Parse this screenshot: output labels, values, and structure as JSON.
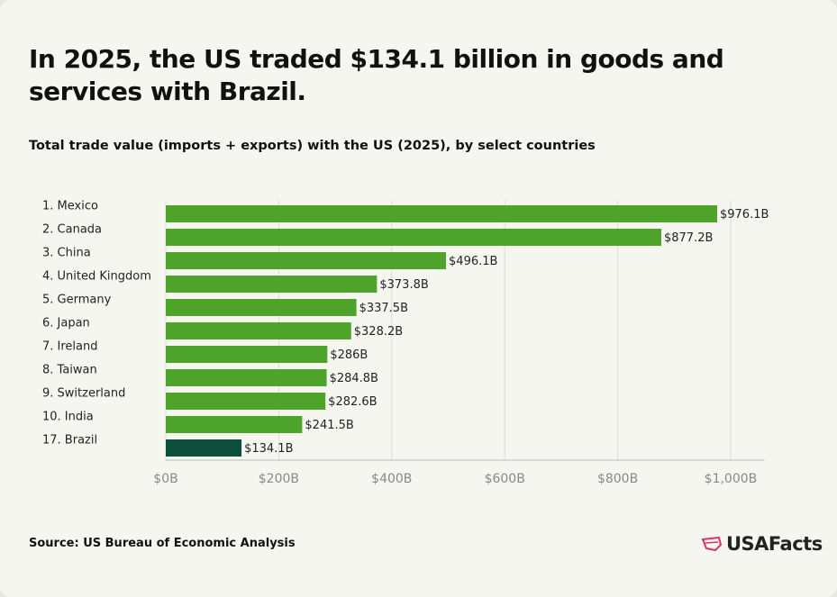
{
  "chart_data": {
    "type": "bar",
    "orientation": "horizontal",
    "title": "In 2025, the US traded $134.1 billion in goods and services with Brazil.",
    "subtitle": "Total trade value (imports + exports) with the US (2025), by select countries",
    "categories": [
      "1. Mexico",
      "2. Canada",
      "3. China",
      "4. United Kingdom",
      "5. Germany",
      "6. Japan",
      "7. Ireland",
      "8. Taiwan",
      "9. Switzerland",
      "10. India",
      "17. Brazil"
    ],
    "values": [
      976.1,
      877.2,
      496.1,
      373.8,
      337.5,
      328.2,
      286,
      284.8,
      282.6,
      241.5,
      134.1
    ],
    "value_labels": [
      "$976.1B",
      "$877.2B",
      "$496.1B",
      "$373.8B",
      "$337.5B",
      "$328.2B",
      "$286B",
      "$284.8B",
      "$282.6B",
      "$241.5B",
      "$134.1B"
    ],
    "colors": [
      "#4ea42a",
      "#4ea42a",
      "#4ea42a",
      "#4ea42a",
      "#4ea42a",
      "#4ea42a",
      "#4ea42a",
      "#4ea42a",
      "#4ea42a",
      "#4ea42a",
      "#0c4f3d"
    ],
    "xlim": [
      0,
      1060
    ],
    "xticks": [
      {
        "value": 0,
        "label": "$0B"
      },
      {
        "value": 200,
        "label": "$200B"
      },
      {
        "value": 400,
        "label": "$400B"
      },
      {
        "value": 600,
        "label": "$600B"
      },
      {
        "value": 800,
        "label": "$800B"
      },
      {
        "value": 1000,
        "label": "$1,000B"
      }
    ],
    "grid": true,
    "source": "Source: US Bureau of Economic Analysis",
    "brand": "USAFacts"
  }
}
